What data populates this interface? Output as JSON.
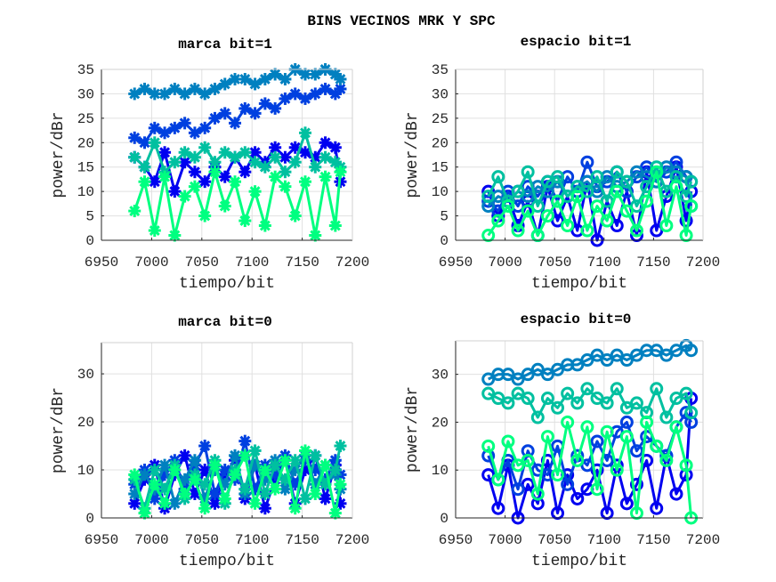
{
  "chart_data": {
    "type": "line",
    "title": "BINS VECINOS MRK Y SPC",
    "x": [
      6983,
      6993,
      7003,
      7013,
      7023,
      7033,
      7043,
      7053,
      7063,
      7073,
      7083,
      7093,
      7103,
      7113,
      7123,
      7133,
      7143,
      7153,
      7163,
      7173,
      7183,
      7188
    ],
    "subplots": [
      {
        "title": "marca bit=1",
        "xlabel": "tiempo/bit",
        "ylabel": "power/dBr",
        "xlim": [
          6950,
          7200
        ],
        "ylim": [
          0,
          35
        ],
        "marker": "asterisk",
        "xticks": [
          "6950",
          "7000",
          "7050",
          "7100",
          "7150",
          "7200"
        ],
        "yticks": [
          "0",
          "5",
          "10",
          "15",
          "20",
          "25",
          "30",
          "35"
        ],
        "grid": true,
        "series": [
          {
            "color": "#0000f0",
            "values": [
              17,
              15,
              12,
              18,
              10,
              16,
              14,
              12,
              15,
              13,
              17,
              14,
              18,
              16,
              19,
              17,
              19,
              18,
              17,
              20,
              19,
              12
            ]
          },
          {
            "color": "#0040e0",
            "values": [
              21,
              20,
              23,
              22,
              23,
              24,
              22,
              23,
              25,
              26,
              24,
              27,
              26,
              28,
              27,
              29,
              30,
              29,
              30,
              31,
              30,
              31
            ]
          },
          {
            "color": "#0080c0",
            "values": [
              30,
              31,
              30,
              30,
              31,
              30,
              31,
              30,
              31,
              32,
              33,
              33,
              32,
              33,
              34,
              33,
              35,
              34,
              34,
              35,
              34,
              33
            ]
          },
          {
            "color": "#00c0a0",
            "values": [
              17,
              15,
              20,
              14,
              16,
              18,
              17,
              19,
              16,
              18,
              17,
              18,
              16,
              15,
              17,
              14,
              16,
              22,
              15,
              17,
              16,
              15
            ]
          },
          {
            "color": "#00ff80",
            "values": [
              6,
              12,
              2,
              13,
              1,
              9,
              11,
              5,
              14,
              7,
              12,
              4,
              10,
              3,
              13,
              11,
              5,
              12,
              1,
              13,
              3,
              14
            ]
          }
        ]
      },
      {
        "title": "espacio bit=1",
        "xlabel": "tiempo/bit",
        "ylabel": "power/dBr",
        "xlim": [
          6950,
          7200
        ],
        "ylim": [
          0,
          35
        ],
        "marker": "circle",
        "xticks": [
          "6950",
          "7000",
          "7050",
          "7100",
          "7150",
          "7200"
        ],
        "yticks": [
          "0",
          "5",
          "10",
          "15",
          "20",
          "25",
          "30",
          "35"
        ],
        "grid": true,
        "series": [
          {
            "color": "#0000f0",
            "values": [
              10,
              5,
              9,
              3,
              8,
              1,
              11,
              4,
              9,
              2,
              12,
              0,
              8,
              3,
              10,
              1,
              14,
              2,
              9,
              15,
              4,
              10
            ]
          },
          {
            "color": "#0040e0",
            "values": [
              8,
              6,
              10,
              7,
              11,
              9,
              12,
              8,
              13,
              10,
              16,
              11,
              12,
              14,
              10,
              13,
              15,
              12,
              14,
              16,
              13,
              7
            ]
          },
          {
            "color": "#0080c0",
            "values": [
              7,
              9,
              8,
              10,
              9,
              11,
              10,
              12,
              9,
              11,
              12,
              10,
              13,
              11,
              12,
              14,
              13,
              12,
              15,
              14,
              13,
              12
            ]
          },
          {
            "color": "#00c0a0",
            "values": [
              9,
              13,
              8,
              10,
              14,
              7,
              12,
              13,
              9,
              11,
              10,
              13,
              8,
              14,
              12,
              7,
              11,
              15,
              10,
              13,
              9,
              12
            ]
          },
          {
            "color": "#00ff80",
            "values": [
              1,
              4,
              7,
              2,
              6,
              1,
              5,
              8,
              3,
              9,
              2,
              7,
              4,
              10,
              6,
              2,
              8,
              14,
              3,
              11,
              1,
              7
            ]
          }
        ]
      },
      {
        "title": "marca bit=0",
        "xlabel": "tiempo/bit",
        "ylabel": "power/dBr",
        "xlim": [
          6950,
          7200
        ],
        "ylim": [
          0,
          36.5
        ],
        "marker": "asterisk",
        "xticks": [
          "6950",
          "7000",
          "7050",
          "7100",
          "7150",
          "7200"
        ],
        "yticks": [
          "0",
          "10",
          "20",
          "30"
        ],
        "grid": true,
        "series": [
          {
            "color": "#0000f0",
            "values": [
              3,
              8,
              11,
              2,
              9,
              13,
              5,
              10,
              3,
              9,
              12,
              4,
              11,
              2,
              8,
              12,
              3,
              10,
              13,
              4,
              11,
              3
            ]
          },
          {
            "color": "#0040e0",
            "values": [
              7,
              10,
              4,
              9,
              12,
              6,
              11,
              15,
              5,
              10,
              8,
              16,
              6,
              11,
              9,
              13,
              7,
              12,
              10,
              8,
              12,
              9
            ]
          },
          {
            "color": "#0080c0",
            "values": [
              5,
              9,
              6,
              11,
              3,
              8,
              12,
              4,
              10,
              7,
              13,
              5,
              11,
              8,
              12,
              6,
              10,
              13,
              7,
              11,
              9,
              6
            ]
          },
          {
            "color": "#00c0a0",
            "values": [
              8,
              2,
              10,
              6,
              11,
              4,
              9,
              7,
              12,
              3,
              10,
              6,
              14,
              5,
              11,
              8,
              12,
              4,
              13,
              7,
              10,
              15
            ]
          },
          {
            "color": "#00ff80",
            "values": [
              9,
              1,
              7,
              3,
              10,
              5,
              8,
              2,
              11,
              4,
              9,
              13,
              3,
              10,
              6,
              12,
              2,
              14,
              5,
              11,
              1,
              7
            ]
          }
        ]
      },
      {
        "title": "espacio bit=0",
        "xlabel": "tiempo/bit",
        "ylabel": "power/dBr",
        "xlim": [
          6950,
          7200
        ],
        "ylim": [
          0,
          37
        ],
        "marker": "circle",
        "xticks": [
          "6950",
          "7000",
          "7050",
          "7100",
          "7150",
          "7200"
        ],
        "yticks": [
          "0",
          "10",
          "20",
          "30"
        ],
        "grid": true,
        "series": [
          {
            "color": "#0000f0",
            "values": [
              9,
              2,
              11,
              0,
              7,
              3,
              12,
              1,
              9,
              4,
              6,
              10,
              1,
              11,
              3,
              7,
              12,
              2,
              13,
              5,
              9,
              25
            ]
          },
          {
            "color": "#0040e0",
            "values": [
              13,
              8,
              12,
              6,
              14,
              10,
              9,
              15,
              7,
              13,
              11,
              16,
              12,
              18,
              20,
              14,
              17,
              15,
              13,
              19,
              22,
              20
            ]
          },
          {
            "color": "#0080c0",
            "values": [
              29,
              30,
              30,
              29,
              30,
              31,
              30,
              31,
              32,
              32,
              33,
              34,
              33,
              34,
              33,
              34,
              35,
              35,
              34,
              35,
              36,
              35
            ]
          },
          {
            "color": "#00c0a0",
            "values": [
              26,
              25,
              24,
              26,
              25,
              21,
              25,
              23,
              26,
              24,
              27,
              25,
              24,
              27,
              23,
              24,
              22,
              27,
              21,
              25,
              26,
              22
            ]
          },
          {
            "color": "#00ff80",
            "values": [
              15,
              8,
              16,
              11,
              12,
              5,
              17,
              9,
              20,
              12,
              19,
              6,
              18,
              10,
              17,
              1,
              20,
              15,
              12,
              19,
              11,
              0
            ]
          }
        ]
      }
    ]
  }
}
